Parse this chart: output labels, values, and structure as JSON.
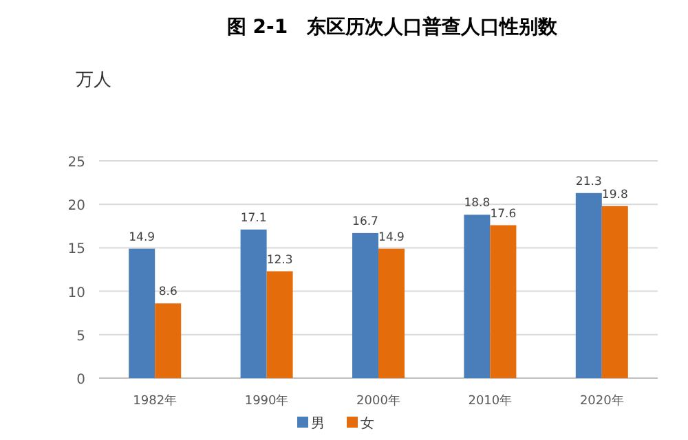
{
  "chart_data": {
    "type": "bar",
    "title": "图 2-1　东区历次人口普查人口性别数",
    "ylabel": "万人",
    "categories": [
      "1982年",
      "1990年",
      "2000年",
      "2010年",
      "2020年"
    ],
    "series": [
      {
        "name": "男",
        "color": "#4a7ebb",
        "values": [
          14.9,
          17.1,
          16.7,
          18.8,
          21.3
        ]
      },
      {
        "name": "女",
        "color": "#e46c0a",
        "values": [
          8.6,
          12.3,
          14.9,
          17.6,
          19.8
        ]
      }
    ],
    "ylim": [
      0,
      25
    ],
    "yticks": [
      0,
      5,
      10,
      15,
      20,
      25
    ],
    "grid": "y",
    "data_labels": true,
    "legend": "bottom"
  }
}
